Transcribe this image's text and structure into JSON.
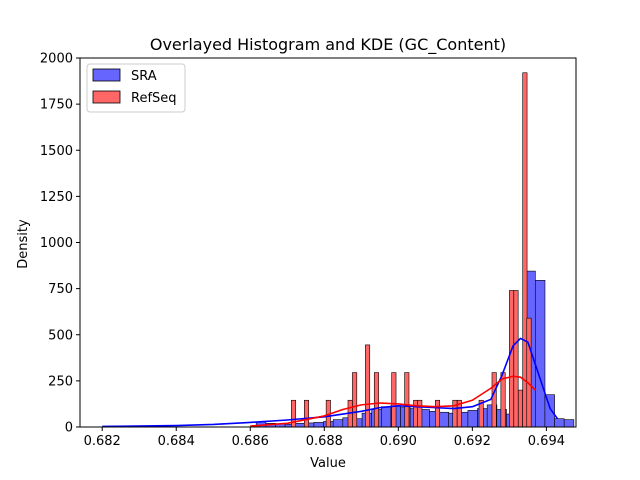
{
  "chart_data": {
    "type": "bar",
    "title": "Overlayed Histogram and KDE (GC_Content)",
    "xlabel": "Value",
    "ylabel": "Density",
    "xlim": [
      0.6814,
      0.6948
    ],
    "ylim": [
      0,
      2000
    ],
    "xticks": [
      0.682,
      0.684,
      0.686,
      0.688,
      0.69,
      0.692,
      0.694
    ],
    "xtick_labels": [
      "0.682",
      "0.684",
      "0.686",
      "0.688",
      "0.690",
      "0.692",
      "0.694"
    ],
    "yticks": [
      0,
      250,
      500,
      750,
      1000,
      1250,
      1500,
      1750,
      2000
    ],
    "ytick_labels": [
      "0",
      "250",
      "500",
      "750",
      "1000",
      "1250",
      "1500",
      "1750",
      "2000"
    ],
    "legend_position": "top-left",
    "grid": false,
    "series": [
      {
        "name": "SRA",
        "color": "#0000ff",
        "bin_width": 0.000262,
        "bins": [
          [
            0.68616,
            28
          ],
          [
            0.68642,
            20
          ],
          [
            0.68668,
            18
          ],
          [
            0.68694,
            15
          ],
          [
            0.6872,
            20
          ],
          [
            0.68746,
            22
          ],
          [
            0.68772,
            25
          ],
          [
            0.68798,
            30
          ],
          [
            0.68824,
            40
          ],
          [
            0.6885,
            50
          ],
          [
            0.68876,
            45
          ],
          [
            0.68902,
            75
          ],
          [
            0.68928,
            95
          ],
          [
            0.68954,
            110
          ],
          [
            0.6898,
            115
          ],
          [
            0.69006,
            105
          ],
          [
            0.69032,
            100
          ],
          [
            0.69058,
            95
          ],
          [
            0.69084,
            85
          ],
          [
            0.6911,
            80
          ],
          [
            0.69136,
            75
          ],
          [
            0.69162,
            80
          ],
          [
            0.69188,
            90
          ],
          [
            0.69214,
            100
          ],
          [
            0.6924,
            120
          ],
          [
            0.69266,
            95
          ],
          [
            0.69292,
            70
          ],
          [
            0.69318,
            150
          ],
          [
            0.69344,
            845
          ],
          [
            0.6937,
            795
          ],
          [
            0.69396,
            175
          ],
          [
            0.69422,
            45
          ],
          [
            0.69448,
            40
          ]
        ],
        "kde_x": [
          0.682,
          0.684,
          0.685,
          0.686,
          0.687,
          0.688,
          0.689,
          0.6895,
          0.69,
          0.6905,
          0.691,
          0.6915,
          0.692,
          0.6925,
          0.6928,
          0.6931,
          0.6933,
          0.6935,
          0.6938,
          0.6941,
          0.6943
        ],
        "kde_y": [
          3,
          8,
          14,
          25,
          38,
          55,
          85,
          105,
          115,
          110,
          105,
          100,
          110,
          150,
          280,
          440,
          480,
          460,
          280,
          100,
          45
        ]
      },
      {
        "name": "RefSeq",
        "color": "#ff0000",
        "bin_width": 0.000118,
        "bins": [
          [
            0.68711,
            145
          ],
          [
            0.68746,
            145
          ],
          [
            0.68805,
            145
          ],
          [
            0.68864,
            145
          ],
          [
            0.68876,
            295
          ],
          [
            0.68911,
            445
          ],
          [
            0.68935,
            295
          ],
          [
            0.68982,
            295
          ],
          [
            0.69017,
            295
          ],
          [
            0.69041,
            145
          ],
          [
            0.69052,
            145
          ],
          [
            0.691,
            145
          ],
          [
            0.69147,
            145
          ],
          [
            0.69159,
            145
          ],
          [
            0.69218,
            145
          ],
          [
            0.69253,
            295
          ],
          [
            0.69277,
            295
          ],
          [
            0.693,
            740
          ],
          [
            0.69312,
            740
          ],
          [
            0.69324,
            200
          ],
          [
            0.69336,
            1920
          ],
          [
            0.69347,
            590
          ]
        ],
        "kde_x": [
          0.686,
          0.687,
          0.688,
          0.6885,
          0.689,
          0.6895,
          0.69,
          0.6905,
          0.691,
          0.6915,
          0.692,
          0.6925,
          0.6928,
          0.6931,
          0.6933,
          0.6935,
          0.6937
        ],
        "kde_y": [
          5,
          20,
          60,
          95,
          120,
          130,
          125,
          115,
          110,
          115,
          145,
          210,
          260,
          275,
          270,
          240,
          200
        ]
      }
    ]
  }
}
